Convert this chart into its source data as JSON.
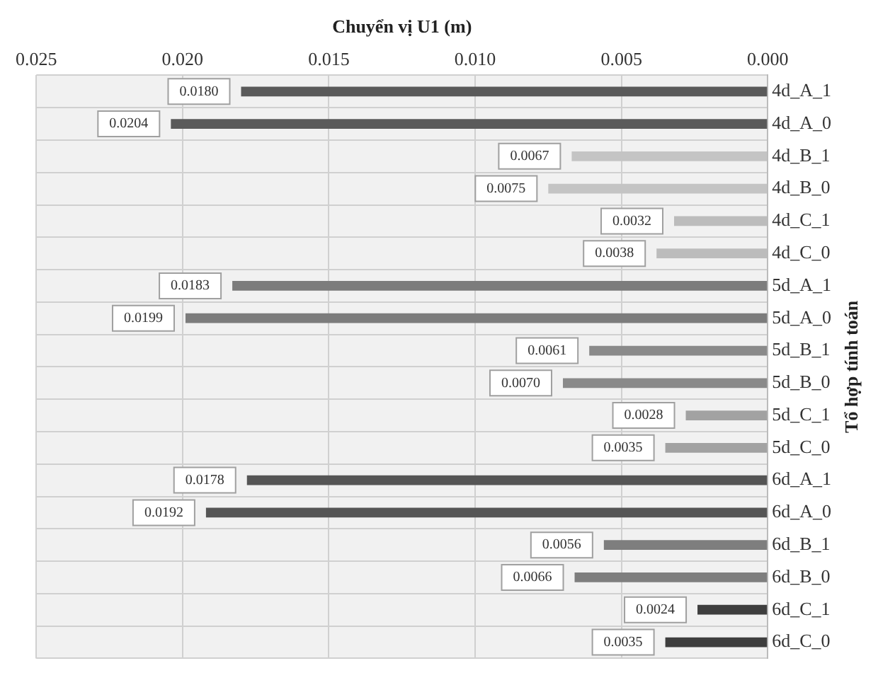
{
  "chart_data": {
    "type": "bar",
    "orientation": "horizontal",
    "xlabel": "Chuyển vị U1 (m)",
    "ylabel": "Tổ hợp tính toán",
    "categories": [
      "4d_A_1",
      "4d_A_0",
      "4d_B_1",
      "4d_B_0",
      "4d_C_1",
      "4d_C_0",
      "5d_A_1",
      "5d_A_0",
      "5d_B_1",
      "5d_B_0",
      "5d_C_1",
      "5d_C_0",
      "6d_A_1",
      "6d_A_0",
      "6d_B_1",
      "6d_B_0",
      "6d_C_1",
      "6d_C_0"
    ],
    "values": [
      0.018,
      0.0204,
      0.0067,
      0.0075,
      0.0032,
      0.0038,
      0.0183,
      0.0199,
      0.0061,
      0.007,
      0.0028,
      0.0035,
      0.0178,
      0.0192,
      0.0056,
      0.0066,
      0.0024,
      0.0035
    ],
    "colors": [
      "#5a5a5a",
      "#5a5a5a",
      "#c4c4c4",
      "#c4c4c4",
      "#bcbcbc",
      "#bcbcbc",
      "#7c7c7c",
      "#7c7c7c",
      "#8a8a8a",
      "#8a8a8a",
      "#a2a2a2",
      "#a2a2a2",
      "#555555",
      "#555555",
      "#7e7e7e",
      "#7e7e7e",
      "#3e3e3e",
      "#3e3e3e"
    ],
    "xlim": [
      0.025,
      0.0
    ],
    "xticks": [
      {
        "value": 0.025,
        "label": "0.025"
      },
      {
        "value": 0.02,
        "label": "0.020"
      },
      {
        "value": 0.015,
        "label": "0.015"
      },
      {
        "value": 0.01,
        "label": "0.010"
      },
      {
        "value": 0.005,
        "label": "0.005"
      },
      {
        "value": 0,
        "label": "0.000"
      }
    ],
    "value_labels": [
      "0.0180",
      "0.0204",
      "0.0067",
      "0.0075",
      "0.0032",
      "0.0038",
      "0.0183",
      "0.0199",
      "0.0061",
      "0.0070",
      "0.0028",
      "0.0035",
      "0.0178",
      "0.0192",
      "0.0056",
      "0.0066",
      "0.0024",
      "0.0035"
    ],
    "grid": true,
    "legend": false
  }
}
